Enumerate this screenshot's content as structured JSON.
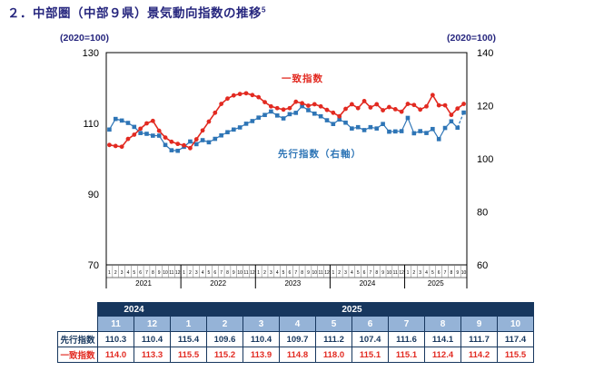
{
  "title": {
    "text": "２．中部圏（中部９県）景気動向指数の推移",
    "superscript": "5"
  },
  "colors": {
    "navy": "#17375E",
    "header_light": "#95B3D7",
    "red": "#E22A21",
    "blue": "#2E75B6",
    "title_navy": "#26267E",
    "axis_text": "#000000"
  },
  "chart_data": {
    "type": "line",
    "title": "",
    "left_axis": {
      "unit": "(2020=100)",
      "ticks": [
        130,
        110,
        90,
        70
      ],
      "range": [
        70,
        130
      ]
    },
    "right_axis": {
      "unit": "(2020=100)",
      "ticks": [
        140,
        120,
        100,
        80,
        60
      ],
      "range": [
        60,
        140
      ]
    },
    "x_years": [
      {
        "label": "2021",
        "months": 12
      },
      {
        "label": "2022",
        "months": 12
      },
      {
        "label": "2023",
        "months": 12
      },
      {
        "label": "2024",
        "months": 12
      },
      {
        "label": "2025",
        "months": 10
      }
    ],
    "grid": false,
    "legend_position": "inside",
    "series": [
      {
        "name": "先行指数（右軸）",
        "axis": "right",
        "color": "#2E75B6",
        "marker": "square",
        "last_segment_dashed": true,
        "values": [
          111.0,
          115.0,
          114.4,
          113.5,
          112.0,
          109.7,
          109.4,
          108.7,
          108.7,
          105.2,
          103.2,
          103.0,
          104.5,
          106.5,
          105.5,
          107.0,
          106.2,
          107.5,
          108.8,
          110.0,
          111.0,
          111.8,
          113.2,
          114.2,
          115.5,
          116.5,
          117.8,
          116.3,
          115.2,
          116.8,
          117.3,
          119.8,
          118.3,
          117.0,
          116.0,
          114.5,
          113.1,
          114.8,
          113.6,
          111.4,
          111.9,
          110.8,
          111.9,
          111.4,
          113.1,
          110.2,
          110.3,
          110.4,
          115.4,
          109.6,
          110.4,
          109.7,
          111.2,
          107.4,
          111.6,
          114.1,
          111.7,
          117.4
        ]
      },
      {
        "name": "一致指数",
        "axis": "left",
        "color": "#E22A21",
        "marker": "circle",
        "last_segment_dashed": false,
        "values": [
          103.9,
          103.6,
          103.4,
          105.6,
          106.8,
          108.5,
          110.0,
          110.7,
          107.9,
          106.0,
          104.8,
          104.2,
          103.8,
          103.0,
          105.5,
          108.0,
          110.5,
          113.0,
          115.5,
          117.0,
          117.9,
          118.3,
          118.5,
          118.0,
          117.4,
          116.0,
          114.8,
          114.3,
          113.9,
          114.3,
          116.1,
          115.7,
          115.0,
          115.4,
          114.8,
          113.8,
          113.0,
          112.0,
          114.1,
          115.4,
          114.3,
          116.3,
          114.5,
          115.4,
          113.7,
          114.6,
          114.0,
          113.3,
          115.5,
          115.2,
          113.9,
          114.8,
          118.0,
          115.1,
          115.1,
          112.4,
          114.2,
          115.5
        ]
      }
    ]
  },
  "table": {
    "year_groups": [
      {
        "label": "2024",
        "span": 2
      },
      {
        "label": "2025",
        "span": 10
      }
    ],
    "months": [
      "11",
      "12",
      "1",
      "2",
      "3",
      "4",
      "5",
      "6",
      "7",
      "8",
      "9",
      "10"
    ],
    "rows": [
      {
        "label": "先行指数",
        "color": "#17375E",
        "values": [
          "110.3",
          "110.4",
          "115.4",
          "109.6",
          "110.4",
          "109.7",
          "111.2",
          "107.4",
          "111.6",
          "114.1",
          "111.7",
          "117.4"
        ]
      },
      {
        "label": "一致指数",
        "color": "#E22A21",
        "values": [
          "114.0",
          "113.3",
          "115.5",
          "115.2",
          "113.9",
          "114.8",
          "118.0",
          "115.1",
          "115.1",
          "112.4",
          "114.2",
          "115.5"
        ]
      }
    ]
  }
}
